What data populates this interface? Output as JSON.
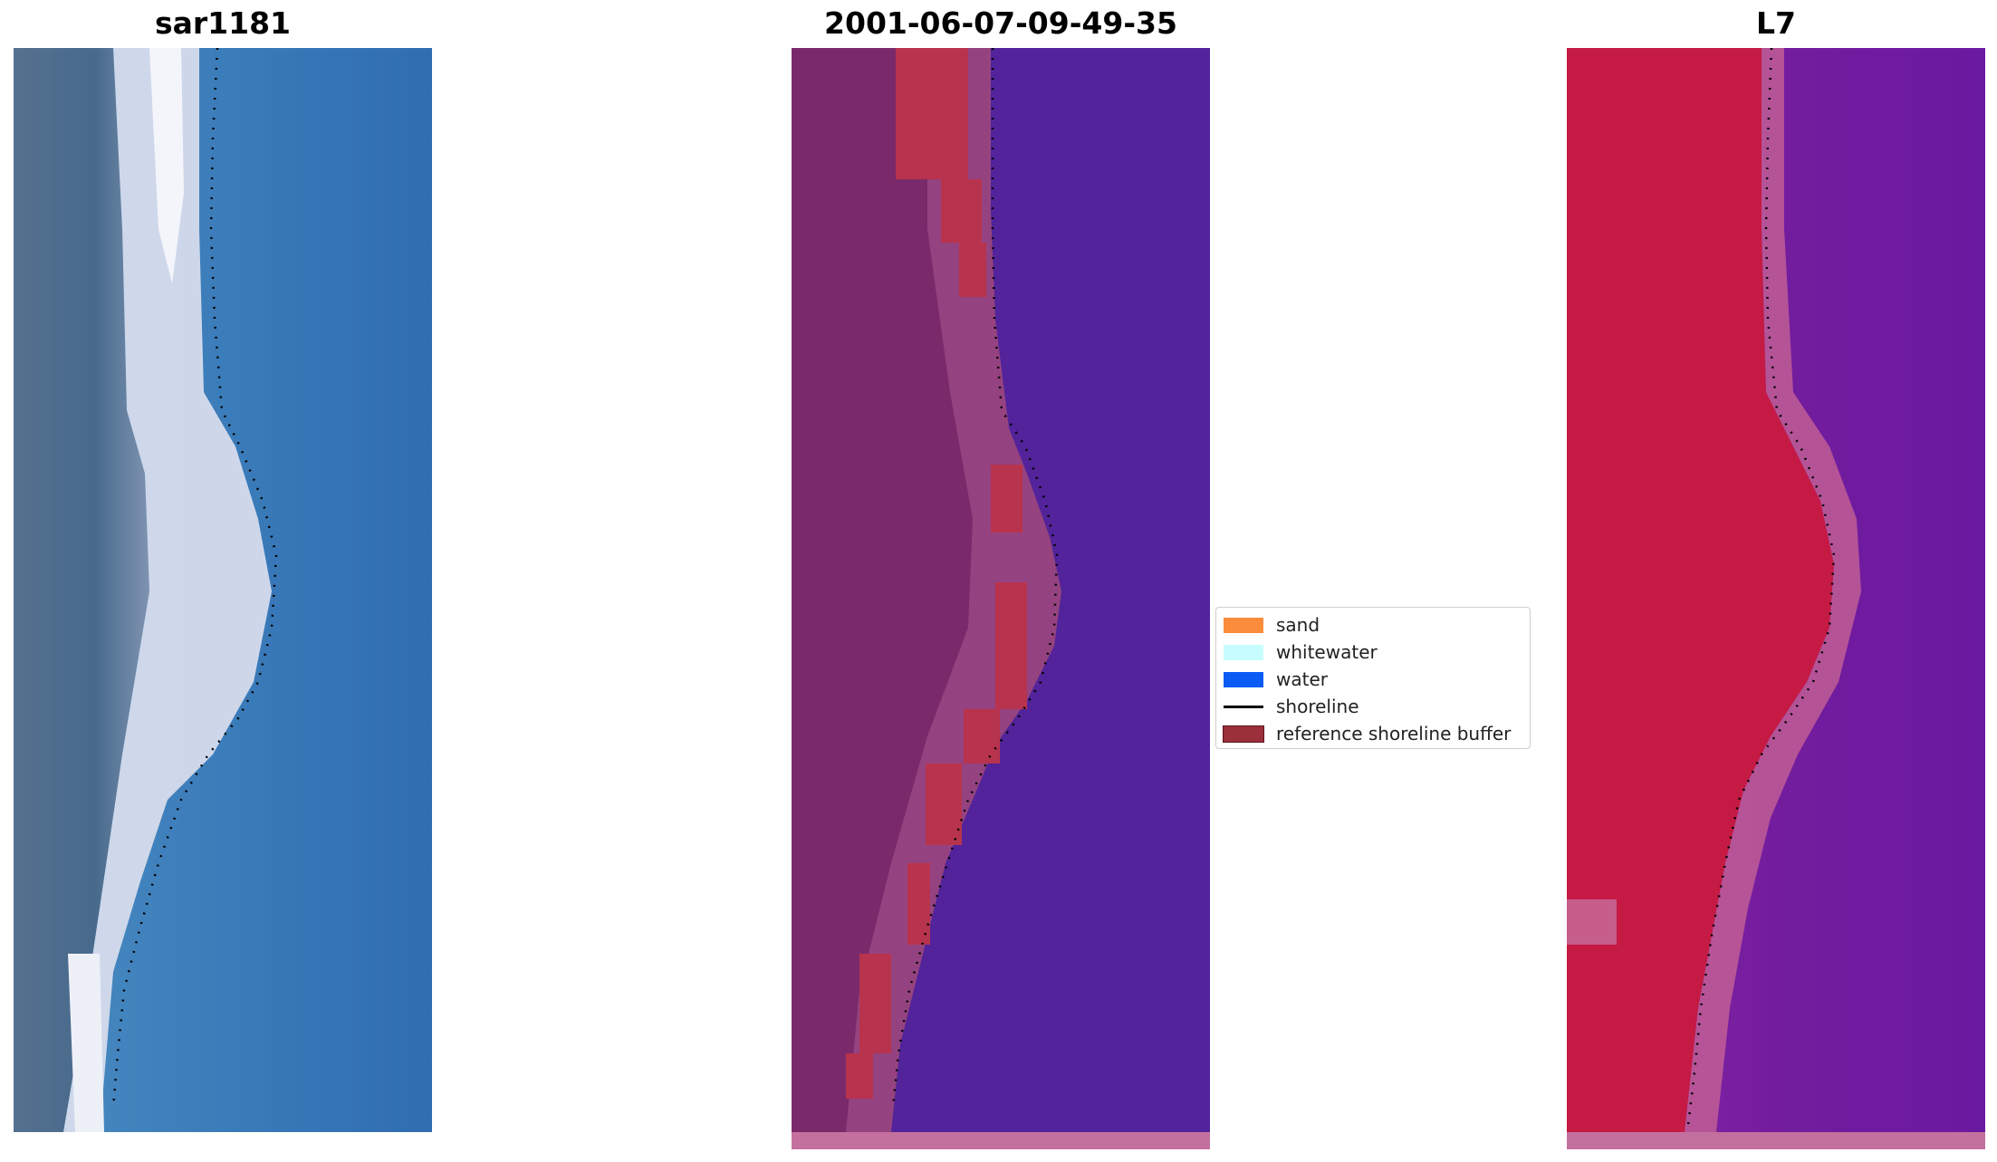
{
  "panels": [
    {
      "title": "sar1181"
    },
    {
      "title": "2001-06-07-09-49-35"
    },
    {
      "title": "L7"
    }
  ],
  "legend": {
    "items": [
      {
        "label": "sand",
        "color": "#fb8c3c",
        "kind": "patch"
      },
      {
        "label": "whitewater",
        "color": "#c8fdff",
        "kind": "patch"
      },
      {
        "label": "water",
        "color": "#0b5cf5",
        "kind": "patch"
      },
      {
        "label": "shoreline",
        "color": "#000000",
        "kind": "line"
      },
      {
        "label": "reference shoreline buffer",
        "color": "#9b2f3a",
        "kind": "patch"
      }
    ]
  },
  "colors": {
    "rgb_water": "#3a7ab6",
    "rgb_land": "#4f6f8f",
    "rgb_beach": "#dce3f2",
    "class_water": "#52239a",
    "class_land": "#7a2a6a",
    "class_buffer": "#b8334d",
    "class_bottom_strip": "#c4709e",
    "swir_land": "#c41a44",
    "swir_water": "#7a1ea0",
    "swir_beach": "#bd5a96"
  }
}
